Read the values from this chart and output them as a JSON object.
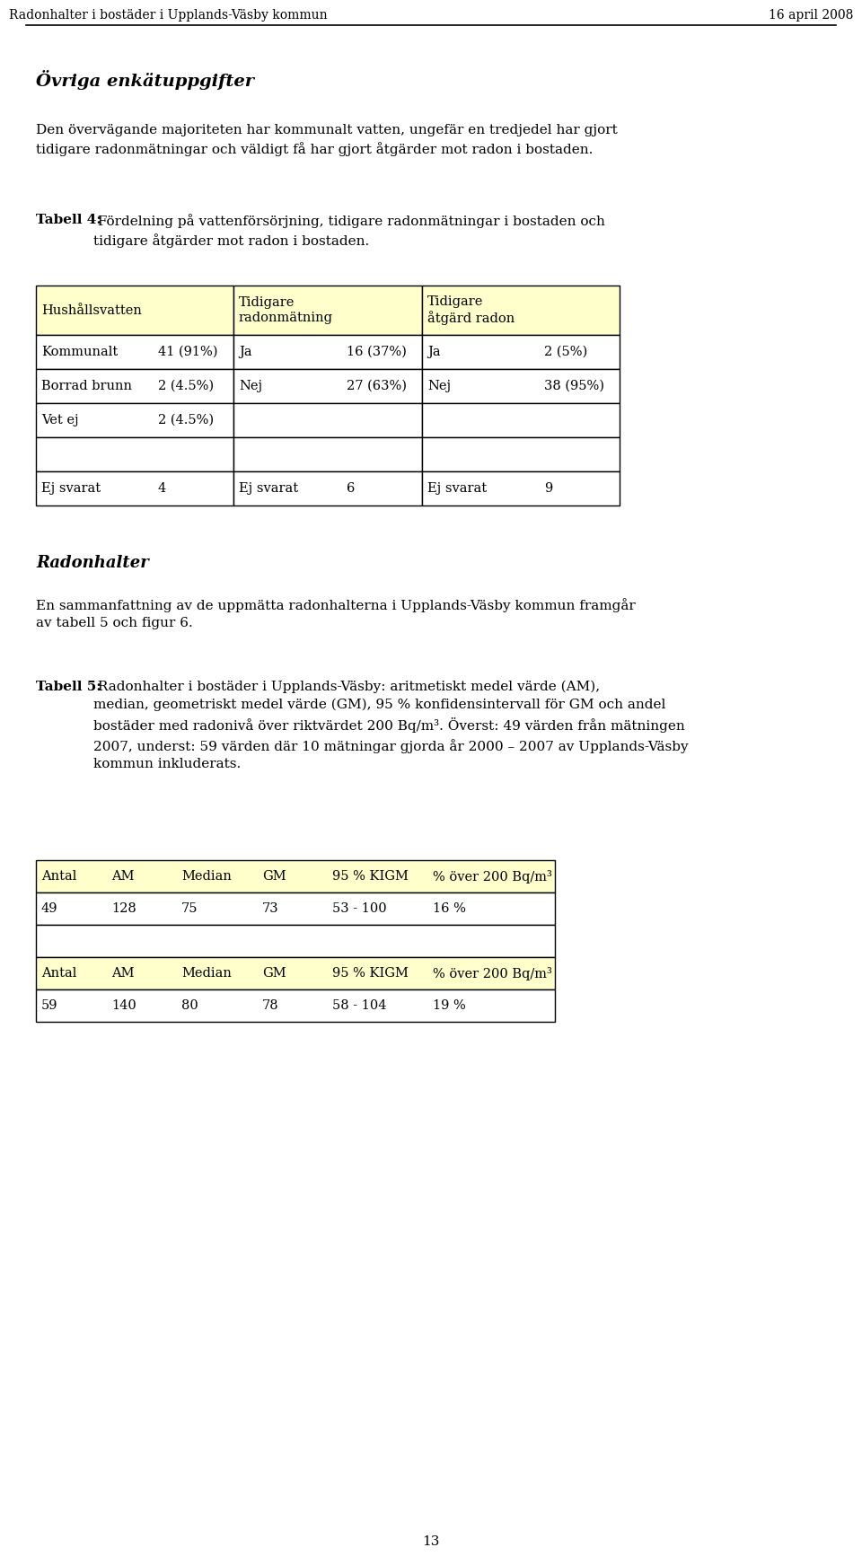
{
  "header_left": "Radonhalter i bostäder i Upplands-Väsby kommun",
  "header_right": "16 april 2008",
  "section1_title": "Övriga enkätuppgifter",
  "section1_para": "Den övervägande majoriteten har kommunalt vatten, ungefär en tredjedel har gjort\ntidigare radonmätningar och väldigt få har gjort åtgärder mot radon i bostaden.",
  "tabell4_label": "Tabell 4:",
  "tabell4_text": " Fördelning på vattenförsörjning, tidigare radonmätningar i bostaden och\ntidigare åtgärder mot radon i bostaden.",
  "table4_h0": "Hushållsvatten",
  "table4_h2": "Tidigare\nradonmätning",
  "table4_h4": "Tidigare\nåtgärd radon",
  "table4_col1": [
    "Kommunalt",
    "Borrad brunn",
    "Vet ej",
    "",
    "Ej svarat"
  ],
  "table4_col2": [
    "41 (91%)",
    "2 (4.5%)",
    "2 (4.5%)",
    "",
    "4"
  ],
  "table4_col3": [
    "Ja",
    "Nej",
    "",
    "",
    "Ej svarat"
  ],
  "table4_col4": [
    "16 (37%)",
    "27 (63%)",
    "",
    "",
    "6"
  ],
  "table4_col5": [
    "Ja",
    "Nej",
    "",
    "",
    "Ej svarat"
  ],
  "table4_col6": [
    "2 (5%)",
    "38 (95%)",
    "",
    "",
    "9"
  ],
  "section2_title": "Radonhalter",
  "section2_para": "En sammanfattning av de uppmätta radonhalterna i Upplands-Väsby kommun framgår\nav tabell 5 och figur 6.",
  "section2_para_bold_word": "uppmätta",
  "tabell5_label": "Tabell 5:",
  "tabell5_text": " Radonhalter i bostäder i Upplands-Väsby: aritmetiskt medel värde (AM),\nmedian, geometriskt medel värde (GM), 95 % konfidensintervall för GM och andel\nbostäder med radonivå över riktvärdet 200 Bq/m³. Överst: 49 värden från mätningen\n2007, underst: 59 värden där 10 mätningar gjorda år 2000 – 2007 av Upplands-Väsby\nkommun inkluderats.",
  "table5a_headers": [
    "Antal",
    "AM",
    "Median",
    "GM",
    "95 % KIGM",
    "% över 200 Bq/m³"
  ],
  "table5a_row": [
    "49",
    "128",
    "75",
    "73",
    "53 - 100",
    "16 %"
  ],
  "table5b_headers": [
    "Antal",
    "AM",
    "Median",
    "GM",
    "95 % KIGM",
    "% över 200 Bq/m³"
  ],
  "table5b_row": [
    "59",
    "140",
    "80",
    "78",
    "58 - 104",
    "19 %"
  ],
  "page_number": "13",
  "bg_color": "#ffffff",
  "table_header_bg": "#ffffcc",
  "table_border": "#000000",
  "text_color": "#000000"
}
